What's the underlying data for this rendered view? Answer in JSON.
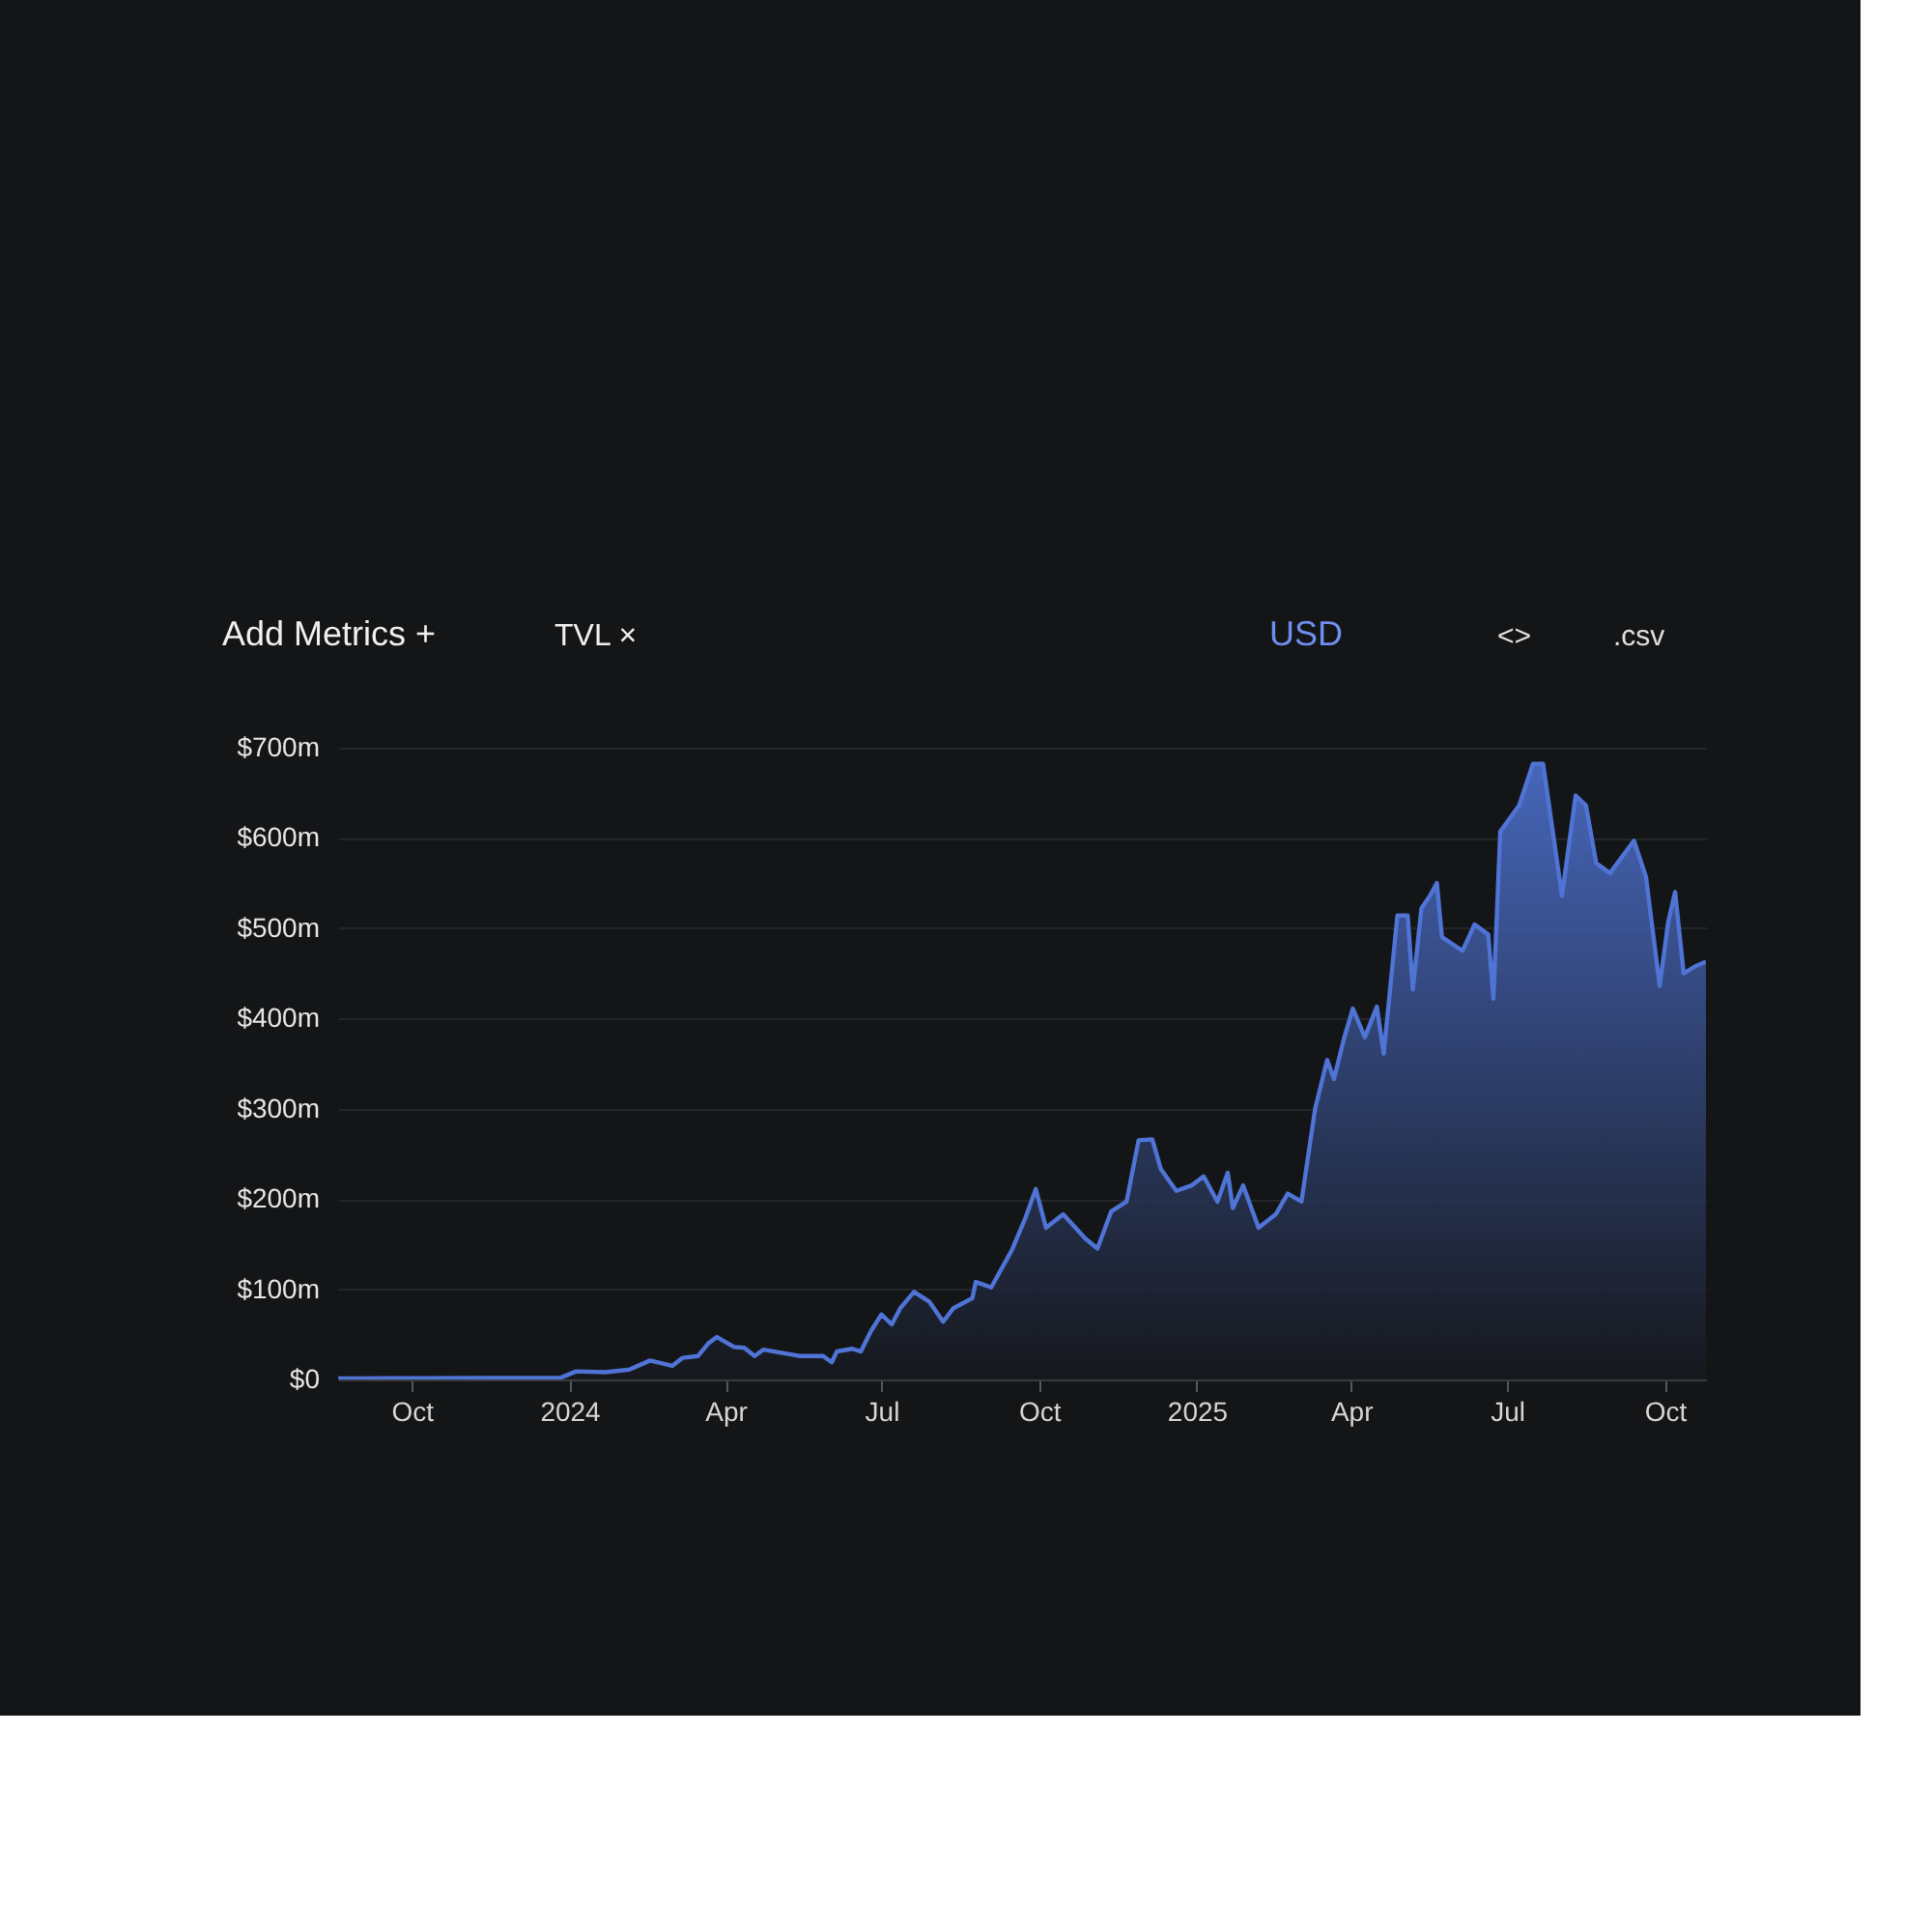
{
  "chart_data": {
    "type": "area",
    "annotations": [
      "Add Metrics +",
      "TVL ×",
      "USD",
      "<>",
      ".csv"
    ],
    "x": [
      "2023-08-19",
      "2023-12-27",
      "2024-01-05",
      "2024-01-22",
      "2024-02-05",
      "2024-02-17",
      "2024-03-01",
      "2024-03-07",
      "2024-03-16",
      "2024-03-22",
      "2024-03-27",
      "2024-04-06",
      "2024-04-12",
      "2024-04-18",
      "2024-04-23",
      "2024-05-14",
      "2024-05-28",
      "2024-06-02",
      "2024-06-05",
      "2024-06-14",
      "2024-06-19",
      "2024-06-25",
      "2024-07-01",
      "2024-07-07",
      "2024-07-12",
      "2024-07-20",
      "2024-07-29",
      "2024-08-06",
      "2024-08-12",
      "2024-08-23",
      "2024-08-25",
      "2024-09-03",
      "2024-09-15",
      "2024-09-23",
      "2024-09-29",
      "2024-10-05",
      "2024-10-15",
      "2024-10-28",
      "2024-11-04",
      "2024-11-12",
      "2024-11-21",
      "2024-11-28",
      "2024-12-06",
      "2024-12-11",
      "2024-12-20",
      "2024-12-29",
      "2025-01-05",
      "2025-01-13",
      "2025-01-19",
      "2025-01-22",
      "2025-01-28",
      "2025-02-06",
      "2025-02-16",
      "2025-02-23",
      "2025-03-03",
      "2025-03-11",
      "2025-03-18",
      "2025-03-22",
      "2025-03-28",
      "2025-04-02",
      "2025-04-09",
      "2025-04-16",
      "2025-04-20",
      "2025-04-28",
      "2025-05-04",
      "2025-05-07",
      "2025-05-12",
      "2025-05-17",
      "2025-05-21",
      "2025-05-24",
      "2025-06-05",
      "2025-06-12",
      "2025-06-20",
      "2025-06-23",
      "2025-06-27",
      "2025-07-08",
      "2025-07-16",
      "2025-07-22",
      "2025-08-02",
      "2025-08-10",
      "2025-08-16",
      "2025-08-22",
      "2025-08-30",
      "2025-09-13",
      "2025-09-20",
      "2025-09-28",
      "2025-10-03",
      "2025-10-07",
      "2025-10-12",
      "2025-10-18",
      "2025-10-25"
    ],
    "series": [
      {
        "color": "#4f74d6",
        "values": [
          1,
          2,
          9,
          8,
          11,
          21,
          15,
          24,
          26,
          40,
          47,
          36,
          35,
          26,
          33,
          26,
          26,
          19,
          31,
          34,
          31,
          54,
          72,
          61,
          79,
          97,
          86,
          64,
          79,
          90,
          108,
          102,
          143,
          179,
          211,
          168,
          183,
          156,
          145,
          186,
          197,
          265,
          266,
          233,
          209,
          215,
          225,
          197,
          229,
          190,
          215,
          168,
          183,
          206,
          197,
          300,
          354,
          333,
          379,
          411,
          379,
          413,
          361,
          514,
          514,
          432,
          522,
          536,
          550,
          490,
          475,
          504,
          493,
          422,
          607,
          636,
          682,
          682,
          536,
          647,
          636,
          572,
          561,
          597,
          557,
          436,
          507,
          540,
          450,
          457,
          463
        ]
      }
    ],
    "xlim": [
      "2023-08-19",
      "2025-10-25"
    ],
    "xticks": [
      {
        "value": "2023-10-01",
        "label": "Oct"
      },
      {
        "value": "2024-01-01",
        "label": "2024"
      },
      {
        "value": "2024-04-01",
        "label": "Apr"
      },
      {
        "value": "2024-07-01",
        "label": "Jul"
      },
      {
        "value": "2024-10-01",
        "label": "Oct"
      },
      {
        "value": "2025-01-01",
        "label": "2025"
      },
      {
        "value": "2025-04-01",
        "label": "Apr"
      },
      {
        "value": "2025-07-01",
        "label": "Jul"
      },
      {
        "value": "2025-10-01",
        "label": "Oct"
      }
    ],
    "ylim": [
      0,
      700
    ],
    "yticks": [
      {
        "value": 0,
        "label": "$0"
      },
      {
        "value": 100,
        "label": "$100m"
      },
      {
        "value": 200,
        "label": "$200m"
      },
      {
        "value": 300,
        "label": "$300m"
      },
      {
        "value": 400,
        "label": "$400m"
      },
      {
        "value": 500,
        "label": "$500m"
      },
      {
        "value": 600,
        "label": "$600m"
      },
      {
        "value": 700,
        "label": "$700m"
      }
    ],
    "grid": "y"
  }
}
